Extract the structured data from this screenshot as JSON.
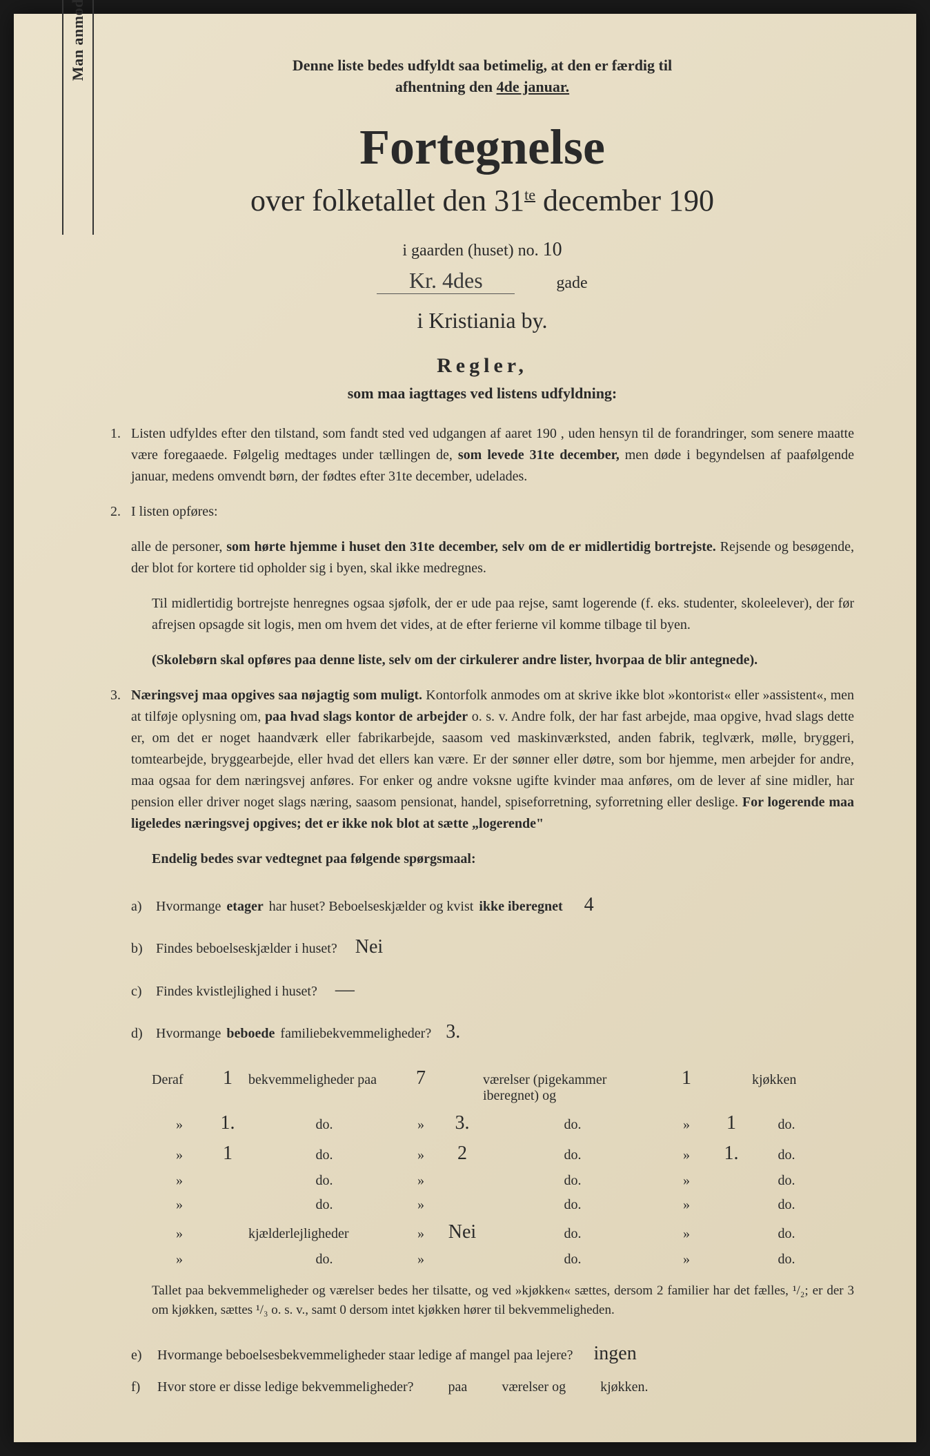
{
  "colors": {
    "paper": "#e8dfc8",
    "ink": "#2a2a2a",
    "background": "#1a1a1a"
  },
  "typography": {
    "body_fontsize": 20,
    "title_fontsize": 72,
    "subtitle_fontsize": 44
  },
  "vertical_note": "Man anmodes om at gjennemlæse og nøje at befølge de paa fortegnelsen trykte overskrifter og anvisninger.",
  "top_note": {
    "line1": "Denne liste bedes udfyldt saa betimelig, at den er færdig til",
    "line2_prefix": "afhentning den ",
    "line2_underlined": "4de januar."
  },
  "title": "Fortegnelse",
  "subtitle_parts": {
    "pre": "over folketallet den 31",
    "sup": "te",
    "post": " december 190"
  },
  "gaarden": {
    "label": "i gaarden (huset) no.",
    "no_value": "10",
    "street_value": "Kr. 4des",
    "street_suffix": "gade"
  },
  "city": "i Kristiania by.",
  "regler": {
    "heading": "Regler,",
    "subheading": "som maa iagttages ved listens udfyldning:"
  },
  "rules": {
    "r1": {
      "num": "1.",
      "text_a": "Listen udfyldes efter den tilstand, som fandt sted ved udgangen af aaret 190   , uden hensyn til de forandringer, som senere maatte være foregaaede. Følgelig medtages under tællingen de, ",
      "bold_a": "som levede 31te december,",
      "text_b": " men døde i begyndelsen af paafølgende januar, medens omvendt børn, der fødtes efter 31te december, udelades."
    },
    "r2": {
      "num": "2.",
      "lead": "I listen opføres:",
      "text_a": "alle de personer, ",
      "bold_a": "som hørte hjemme i huset den 31te december, selv om de er midlertidig bortrejste.",
      "text_b": " Rejsende og besøgende, der blot for kortere tid opholder sig i byen, skal ikke medregnes.",
      "para2": "Til midlertidig bortrejste henregnes ogsaa sjøfolk, der er ude paa rejse, samt logerende (f. eks. studenter, skoleelever), der før afrejsen opsagde sit logis, men om hvem det vides, at de efter ferierne vil komme tilbage til byen.",
      "bold_b": "(Skolebørn skal opføres paa denne liste, selv om der cirkulerer andre lister, hvorpaa de blir antegnede)."
    },
    "r3": {
      "num": "3.",
      "bold_a": "Næringsvej maa opgives saa nøjagtig som muligt.",
      "text_a": " Kontorfolk anmodes om at skrive ikke blot »kontorist« eller »assistent«, men at tilføje oplysning om, ",
      "bold_b": "paa hvad slags kontor de arbejder",
      "text_b": " o. s. v. Andre folk, der har fast arbejde, maa opgive, hvad slags dette er, om det er noget haandværk eller fabrikarbejde, saasom ved maskinværksted, anden fabrik, teglværk, mølle, bryggeri, tomtearbejde, bryggearbejde, eller hvad det ellers kan være. Er der sønner eller døtre, som bor hjemme, men arbejder for andre, maa ogsaa for dem næringsvej anføres. For enker og andre voksne ugifte kvinder maa anføres, om de lever af sine midler, har pension eller driver noget slags næring, saasom pensionat, handel, spiseforretning, syforretning eller deslige. ",
      "bold_c": "For logerende maa ligeledes næringsvej opgives; det er ikke nok blot at sætte „logerende\""
    }
  },
  "final_heading": "Endelig bedes svar vedtegnet paa følgende spørgsmaal:",
  "questions": {
    "a": {
      "label": "a)",
      "text_pre": "Hvormange ",
      "bold": "etager",
      "text_mid": " har huset? Beboelseskjælder og kvist ",
      "bold2": "ikke iberegnet",
      "answer": "4"
    },
    "b": {
      "label": "b)",
      "text": "Findes beboelseskjælder i huset?",
      "answer": "Nei"
    },
    "c": {
      "label": "c)",
      "text": "Findes kvistlejlighed i huset?",
      "answer": "—"
    },
    "d": {
      "label": "d)",
      "text_pre": "Hvormange ",
      "bold": "beboede",
      "text_post": " familiebekvemmeligheder?",
      "answer": "3."
    }
  },
  "table": {
    "header": {
      "deraf": "Deraf",
      "bekv": "bekvemmeligheder paa",
      "vaer": "værelser (pigekammer iberegnet) og",
      "kjok": "kjøkken"
    },
    "rows": [
      {
        "c1": "1",
        "c2": "7",
        "c3": "1"
      },
      {
        "c1": "1.",
        "c2": "3.",
        "c3": "1"
      },
      {
        "c1": "1",
        "c2": "2",
        "c3": "1."
      },
      {
        "c1": "",
        "c2": "",
        "c3": ""
      },
      {
        "c1": "",
        "c2": "",
        "c3": ""
      }
    ],
    "kjaelder_label": "kjælderlejligheder",
    "kjaelder_val": "Nei",
    "do": "do.",
    "ditto": "»"
  },
  "table_footnote": "Tallet paa bekvemmeligheder og værelser bedes her tilsatte, og ved »kjøkken« sættes, dersom 2 familier har det fælles, ¹/₂; er der 3 om kjøkken, sættes ¹/₃ o. s. v., samt 0 dersom intet kjøkken hører til bekvemmeligheden.",
  "final_questions": {
    "e": {
      "label": "e)",
      "text": "Hvormange beboelsesbekvemmeligheder staar ledige af mangel paa lejere?",
      "answer": "ingen"
    },
    "f": {
      "label": "f)",
      "text": "Hvor store er disse ledige bekvemmeligheder?",
      "mid1": "paa",
      "mid2": "værelser og",
      "mid3": "kjøkken."
    }
  }
}
